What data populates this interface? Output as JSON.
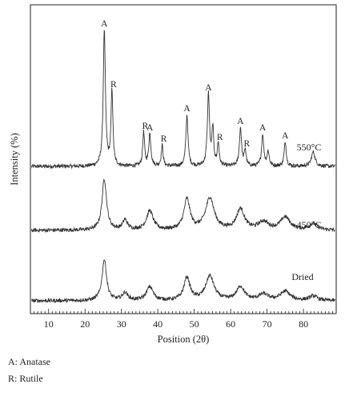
{
  "chart_data": {
    "type": "line",
    "xlabel": "Position (2θ)",
    "ylabel": "Intensity (%)",
    "xlim": [
      5,
      89
    ],
    "x_ticks": [
      10,
      20,
      30,
      40,
      50,
      60,
      70,
      80
    ],
    "grid": false,
    "series": [
      {
        "name": "550°C",
        "baseline": 1.0,
        "noise": 0.12,
        "peaks": [
          {
            "x": 25.3,
            "height": 8.5,
            "width": 0.35
          },
          {
            "x": 27.4,
            "height": 4.7,
            "width": 0.3
          },
          {
            "x": 36.1,
            "height": 2.1,
            "width": 0.3
          },
          {
            "x": 37.8,
            "height": 2.0,
            "width": 0.35
          },
          {
            "x": 41.2,
            "height": 1.3,
            "width": 0.3
          },
          {
            "x": 48.0,
            "height": 3.2,
            "width": 0.35
          },
          {
            "x": 53.9,
            "height": 4.5,
            "width": 0.35
          },
          {
            "x": 55.1,
            "height": 2.3,
            "width": 0.3
          },
          {
            "x": 56.6,
            "height": 1.4,
            "width": 0.3
          },
          {
            "x": 62.7,
            "height": 2.4,
            "width": 0.35
          },
          {
            "x": 64.0,
            "height": 1.0,
            "width": 0.3
          },
          {
            "x": 68.8,
            "height": 2.0,
            "width": 0.35
          },
          {
            "x": 70.3,
            "height": 0.9,
            "width": 0.35
          },
          {
            "x": 75.0,
            "height": 1.5,
            "width": 0.35
          },
          {
            "x": 82.7,
            "height": 0.9,
            "width": 0.6
          }
        ]
      },
      {
        "name": "450°C",
        "baseline": 1.0,
        "noise": 0.12,
        "peaks": [
          {
            "x": 25.3,
            "height": 3.2,
            "width": 0.75
          },
          {
            "x": 31.0,
            "height": 0.6,
            "width": 0.8
          },
          {
            "x": 37.8,
            "height": 1.2,
            "width": 1.1
          },
          {
            "x": 48.0,
            "height": 1.9,
            "width": 1.0
          },
          {
            "x": 54.3,
            "height": 2.0,
            "width": 1.4
          },
          {
            "x": 62.7,
            "height": 1.3,
            "width": 1.3
          },
          {
            "x": 69.0,
            "height": 0.5,
            "width": 1.6
          },
          {
            "x": 75.0,
            "height": 0.8,
            "width": 1.6
          },
          {
            "x": 82.7,
            "height": 0.4,
            "width": 1.3
          }
        ]
      },
      {
        "name": "Dried",
        "baseline": 1.0,
        "noise": 0.12,
        "peaks": [
          {
            "x": 25.3,
            "height": 2.7,
            "width": 0.75
          },
          {
            "x": 31.0,
            "height": 0.5,
            "width": 0.9
          },
          {
            "x": 37.8,
            "height": 0.9,
            "width": 1.1
          },
          {
            "x": 48.0,
            "height": 1.5,
            "width": 1.0
          },
          {
            "x": 54.3,
            "height": 1.6,
            "width": 1.4
          },
          {
            "x": 62.7,
            "height": 0.9,
            "width": 1.3
          },
          {
            "x": 69.0,
            "height": 0.4,
            "width": 1.6
          },
          {
            "x": 75.0,
            "height": 0.6,
            "width": 1.6
          },
          {
            "x": 82.7,
            "height": 0.3,
            "width": 1.3
          }
        ]
      }
    ],
    "peak_annotations": [
      {
        "text": "A",
        "x": 25.3
      },
      {
        "text": "R",
        "x": 27.4
      },
      {
        "text": "R",
        "x": 36.1
      },
      {
        "text": "A",
        "x": 37.8
      },
      {
        "text": "R",
        "x": 41.2
      },
      {
        "text": "A",
        "x": 48.0
      },
      {
        "text": "A",
        "x": 53.9
      },
      {
        "text": "R",
        "x": 56.6
      },
      {
        "text": "A",
        "x": 62.7
      },
      {
        "text": "R",
        "x": 64.0
      },
      {
        "text": "A",
        "x": 68.8
      },
      {
        "text": "A",
        "x": 75.0
      }
    ],
    "trace_labels": [
      "550°C",
      "450°C",
      "Dried"
    ],
    "line_color": "#333333"
  },
  "legend": {
    "anatase": "A: Anatase",
    "rutile": "R: Rutile"
  }
}
